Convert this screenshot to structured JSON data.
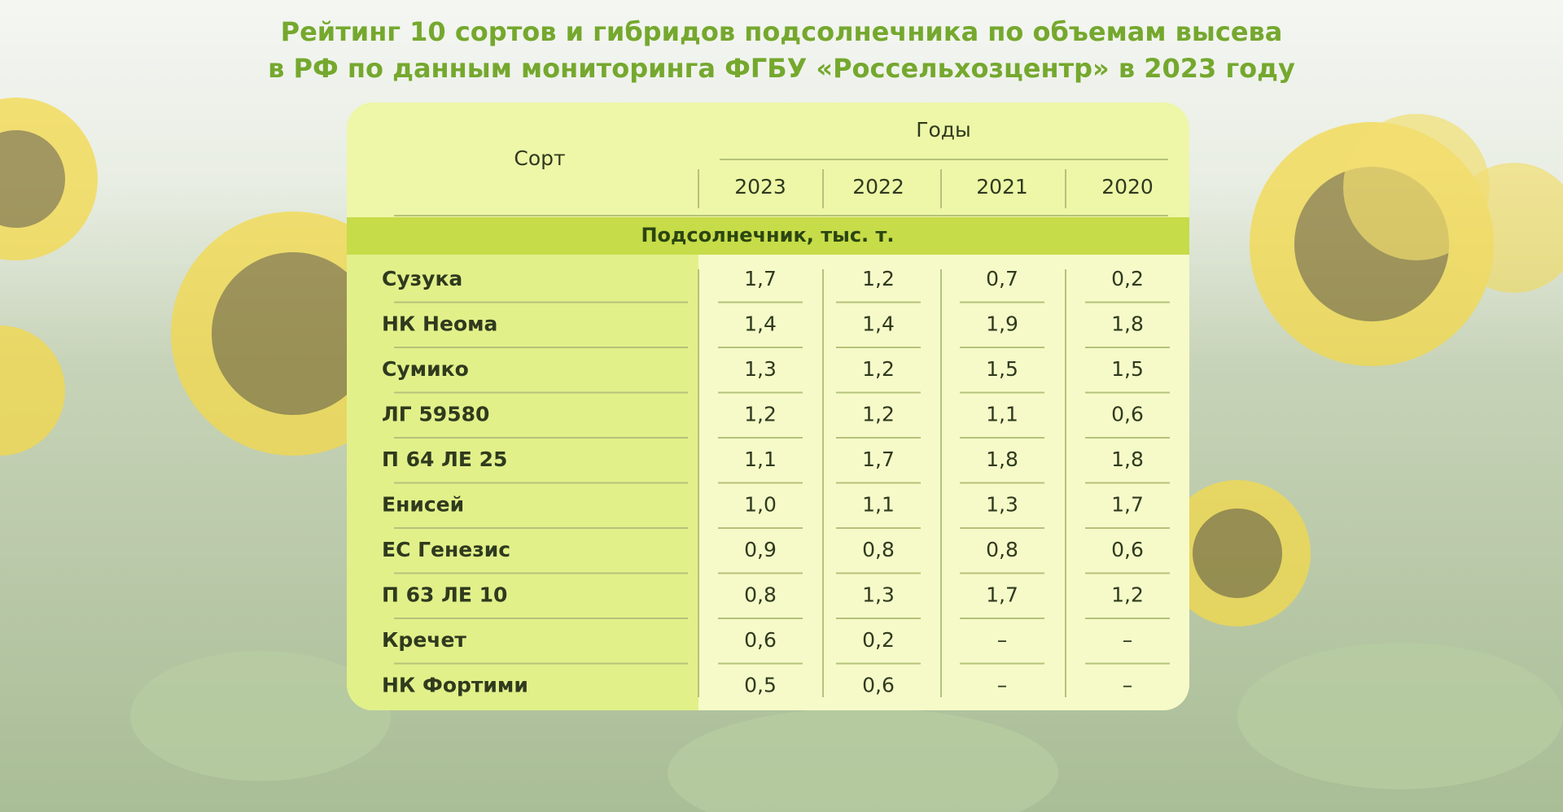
{
  "title": [
    "Рейтинг 10 сортов и гибридов подсолнечника по объемам высева",
    "в РФ по данным мониторинга ФГБУ «Россельхозцентр» в 2023 году"
  ],
  "table": {
    "header": {
      "variety": "Сорт",
      "years_label": "Годы",
      "years": [
        2023,
        2022,
        2021,
        2020
      ]
    },
    "section": "Подсолнечник, тыс. т.",
    "rows": [
      {
        "name": "Сузука",
        "values": [
          "1,7",
          "1,2",
          "0,7",
          "0,2"
        ]
      },
      {
        "name": "НК Неома",
        "values": [
          "1,4",
          "1,4",
          "1,9",
          "1,8"
        ]
      },
      {
        "name": "Сумико",
        "values": [
          "1,3",
          "1,2",
          "1,5",
          "1,5"
        ]
      },
      {
        "name": "ЛГ 59580",
        "values": [
          "1,2",
          "1,2",
          "1,1",
          "0,6"
        ]
      },
      {
        "name": "П 64 ЛЕ 25",
        "values": [
          "1,1",
          "1,7",
          "1,8",
          "1,8"
        ]
      },
      {
        "name": "Енисей",
        "values": [
          "1,0",
          "1,1",
          "1,3",
          "1,7"
        ]
      },
      {
        "name": "ЕС Генезис",
        "values": [
          "0,9",
          "0,8",
          "0,8",
          "0,6"
        ]
      },
      {
        "name": "П 63 ЛЕ 10",
        "values": [
          "0,8",
          "1,3",
          "1,7",
          "1,2"
        ]
      },
      {
        "name": "Кречет",
        "values": [
          "0,6",
          "0,2",
          "–",
          "–"
        ]
      },
      {
        "name": "НК Фортими",
        "values": [
          "0,5",
          "0,6",
          "–",
          "–"
        ]
      }
    ]
  }
}
